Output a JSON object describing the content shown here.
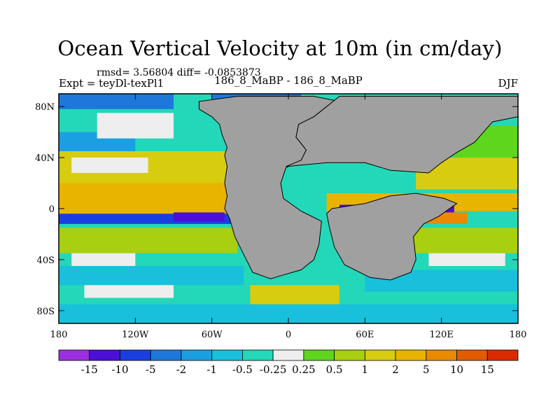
{
  "chart_data": {
    "type": "heatmap",
    "title": "Ocean Vertical Velocity at 10m (in cm/day)",
    "stats_text": "rmsd= 3.56804 diff= -0.0853873",
    "left_label": "Expt = teyDl-texPl1",
    "center_label": "186_8_MaBP - 186_8_MaBP",
    "right_label": "DJF",
    "x_ticks": [
      {
        "value": -180,
        "label": "180"
      },
      {
        "value": -120,
        "label": "120W"
      },
      {
        "value": -60,
        "label": "60W"
      },
      {
        "value": 0,
        "label": "0"
      },
      {
        "value": 60,
        "label": "60E"
      },
      {
        "value": 120,
        "label": "120E"
      },
      {
        "value": 180,
        "label": "180"
      }
    ],
    "y_ticks": [
      {
        "value": 80,
        "label": "80N"
      },
      {
        "value": 40,
        "label": "40N"
      },
      {
        "value": 0,
        "label": "0"
      },
      {
        "value": -40,
        "label": "40S"
      },
      {
        "value": -80,
        "label": "80S"
      }
    ],
    "xlim": [
      -180,
      180
    ],
    "ylim": [
      -90,
      90
    ],
    "colorbar": {
      "colors": [
        "#9b2fe0",
        "#4b0fd8",
        "#1a3fe0",
        "#1e78dc",
        "#1aa0e0",
        "#18c0dc",
        "#22d8b8",
        "#eeeeee",
        "#5ed61e",
        "#a8d010",
        "#d8cc10",
        "#e8b400",
        "#ea8a00",
        "#e45a00",
        "#dc2a00"
      ],
      "labels": [
        "-15",
        "-10",
        "-5",
        "-2",
        "-1",
        "-0.5",
        "-0.25",
        "0.25",
        "0.5",
        "1",
        "2",
        "5",
        "10",
        "15"
      ]
    },
    "field_regions": [
      {
        "lon0": -180,
        "lon1": 180,
        "lat0": -90,
        "lat1": 90,
        "color": "#22d8b8"
      },
      {
        "lon0": -180,
        "lon1": -40,
        "lat0": -5,
        "lat1": 25,
        "color": "#e8b400"
      },
      {
        "lon0": -180,
        "lon1": -30,
        "lat0": 20,
        "lat1": 45,
        "color": "#d8cc10"
      },
      {
        "lon0": -170,
        "lon1": -110,
        "lat0": 28,
        "lat1": 40,
        "color": "#eeeeee"
      },
      {
        "lon0": -180,
        "lon1": -120,
        "lat0": 45,
        "lat1": 60,
        "color": "#1aa0e0"
      },
      {
        "lon0": -150,
        "lon1": -90,
        "lat0": 55,
        "lat1": 75,
        "color": "#eeeeee"
      },
      {
        "lon0": -180,
        "lon1": -40,
        "lat0": -12,
        "lat1": -4,
        "color": "#1a3fe0"
      },
      {
        "lon0": -90,
        "lon1": -50,
        "lat0": -10,
        "lat1": -3,
        "color": "#4b0fd8"
      },
      {
        "lon0": -180,
        "lon1": -40,
        "lat0": -35,
        "lat1": -15,
        "color": "#a8d010"
      },
      {
        "lon0": -170,
        "lon1": -120,
        "lat0": -45,
        "lat1": -35,
        "color": "#eeeeee"
      },
      {
        "lon0": -180,
        "lon1": -35,
        "lat0": -60,
        "lat1": -45,
        "color": "#18c0dc"
      },
      {
        "lon0": -160,
        "lon1": -90,
        "lat0": -70,
        "lat1": -60,
        "color": "#eeeeee"
      },
      {
        "lon0": -180,
        "lon1": 180,
        "lat0": -90,
        "lat1": -75,
        "color": "#18c0dc"
      },
      {
        "lon0": 30,
        "lon1": 180,
        "lat0": -2,
        "lat1": 12,
        "color": "#e8b400"
      },
      {
        "lon0": 40,
        "lon1": 130,
        "lat0": -3,
        "lat1": 3,
        "color": "#4b0fd8"
      },
      {
        "lon0": 40,
        "lon1": 140,
        "lat0": -12,
        "lat1": -3,
        "color": "#ea8a00"
      },
      {
        "lon0": 100,
        "lon1": 180,
        "lat0": 15,
        "lat1": 40,
        "color": "#d8cc10"
      },
      {
        "lon0": 130,
        "lon1": 180,
        "lat0": 40,
        "lat1": 65,
        "color": "#5ed61e"
      },
      {
        "lon0": 60,
        "lon1": 180,
        "lat0": -35,
        "lat1": -15,
        "color": "#a8d010"
      },
      {
        "lon0": 110,
        "lon1": 170,
        "lat0": -45,
        "lat1": -35,
        "color": "#eeeeee"
      },
      {
        "lon0": 60,
        "lon1": 180,
        "lat0": -65,
        "lat1": -48,
        "color": "#18c0dc"
      },
      {
        "lon0": -30,
        "lon1": 40,
        "lat0": -75,
        "lat1": -60,
        "color": "#d8cc10"
      },
      {
        "lon0": -180,
        "lon1": -90,
        "lat0": 78,
        "lat1": 90,
        "color": "#1e78dc"
      },
      {
        "lon0": -60,
        "lon1": 10,
        "lat0": 82,
        "lat1": 90,
        "color": "#1e78dc"
      }
    ],
    "land_polygons": [
      {
        "name": "west-landmass",
        "points": [
          [
            -70,
            78
          ],
          [
            -60,
            72
          ],
          [
            -54,
            66
          ],
          [
            -52,
            58
          ],
          [
            -48,
            48
          ],
          [
            -50,
            42
          ],
          [
            -48,
            33
          ],
          [
            -50,
            20
          ],
          [
            -48,
            10
          ],
          [
            -50,
            0
          ],
          [
            -46,
            -8
          ],
          [
            -42,
            -22
          ],
          [
            -34,
            -38
          ],
          [
            -28,
            -50
          ],
          [
            -14,
            -55
          ],
          [
            -4,
            -52
          ],
          [
            10,
            -48
          ],
          [
            20,
            -40
          ],
          [
            24,
            -28
          ],
          [
            26,
            -10
          ],
          [
            10,
            -2
          ],
          [
            -4,
            8
          ],
          [
            -6,
            20
          ],
          [
            -2,
            32
          ],
          [
            10,
            38
          ],
          [
            14,
            46
          ],
          [
            6,
            56
          ],
          [
            8,
            66
          ],
          [
            20,
            72
          ],
          [
            30,
            80
          ],
          [
            40,
            84
          ],
          [
            20,
            88
          ],
          [
            -40,
            88
          ],
          [
            -70,
            84
          ]
        ]
      },
      {
        "name": "east-landmass",
        "points": [
          [
            -2,
            33
          ],
          [
            30,
            36
          ],
          [
            60,
            36
          ],
          [
            80,
            30
          ],
          [
            110,
            28
          ],
          [
            120,
            36
          ],
          [
            132,
            44
          ],
          [
            146,
            52
          ],
          [
            160,
            68
          ],
          [
            180,
            72
          ],
          [
            180,
            88
          ],
          [
            40,
            88
          ],
          [
            30,
            80
          ],
          [
            20,
            72
          ],
          [
            8,
            66
          ],
          [
            6,
            56
          ],
          [
            14,
            46
          ],
          [
            10,
            38
          ]
        ]
      },
      {
        "name": "south-landmass",
        "points": [
          [
            34,
            0
          ],
          [
            60,
            4
          ],
          [
            80,
            10
          ],
          [
            100,
            12
          ],
          [
            122,
            8
          ],
          [
            132,
            4
          ],
          [
            118,
            -6
          ],
          [
            106,
            -12
          ],
          [
            98,
            -22
          ],
          [
            100,
            -40
          ],
          [
            96,
            -50
          ],
          [
            80,
            -56
          ],
          [
            64,
            -54
          ],
          [
            44,
            -44
          ],
          [
            36,
            -30
          ],
          [
            32,
            -14
          ],
          [
            30,
            -4
          ]
        ]
      }
    ]
  }
}
